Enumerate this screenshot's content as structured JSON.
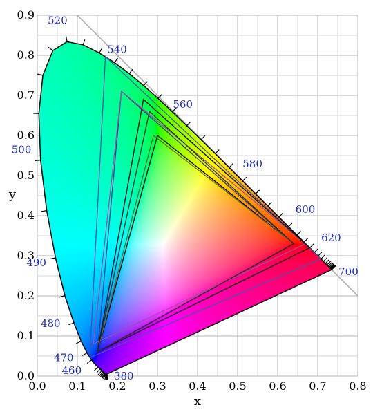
{
  "chart_data": {
    "type": "scatter",
    "title": "",
    "xlabel": "x",
    "ylabel": "y",
    "xlim": [
      0,
      0.8
    ],
    "ylim": [
      0,
      0.9
    ],
    "grid": true,
    "x_ticks": [
      "0.0",
      "0.1",
      "0.2",
      "0.3",
      "0.4",
      "0.5",
      "0.6",
      "0.7",
      "0.8"
    ],
    "y_ticks": [
      "0.0",
      "0.1",
      "0.2",
      "0.3",
      "0.4",
      "0.5",
      "0.6",
      "0.7",
      "0.8",
      "0.9"
    ],
    "spectral_locus": [
      [
        0.1741,
        0.005
      ],
      [
        0.1738,
        0.0049
      ],
      [
        0.1736,
        0.0049
      ],
      [
        0.1733,
        0.0048
      ],
      [
        0.173,
        0.0048
      ],
      [
        0.1726,
        0.0048
      ],
      [
        0.1721,
        0.0048
      ],
      [
        0.1714,
        0.0051
      ],
      [
        0.1703,
        0.0058
      ],
      [
        0.1689,
        0.0069
      ],
      [
        0.1669,
        0.0086
      ],
      [
        0.1644,
        0.0109
      ],
      [
        0.1611,
        0.0138
      ],
      [
        0.1566,
        0.0177
      ],
      [
        0.151,
        0.0227
      ],
      [
        0.144,
        0.0297
      ],
      [
        0.1355,
        0.0399
      ],
      [
        0.1241,
        0.0578
      ],
      [
        0.1096,
        0.0868
      ],
      [
        0.0913,
        0.1327
      ],
      [
        0.0687,
        0.2007
      ],
      [
        0.0454,
        0.295
      ],
      [
        0.0235,
        0.4127
      ],
      [
        0.0082,
        0.5384
      ],
      [
        0.0039,
        0.6548
      ],
      [
        0.0139,
        0.7502
      ],
      [
        0.0389,
        0.812
      ],
      [
        0.0743,
        0.8338
      ],
      [
        0.1142,
        0.8262
      ],
      [
        0.1547,
        0.8059
      ],
      [
        0.1929,
        0.7816
      ],
      [
        0.2296,
        0.7543
      ],
      [
        0.2658,
        0.7243
      ],
      [
        0.3016,
        0.6923
      ],
      [
        0.3373,
        0.6589
      ],
      [
        0.3731,
        0.6245
      ],
      [
        0.4087,
        0.5896
      ],
      [
        0.4441,
        0.5547
      ],
      [
        0.4788,
        0.5202
      ],
      [
        0.5125,
        0.4866
      ],
      [
        0.5448,
        0.4544
      ],
      [
        0.5752,
        0.4242
      ],
      [
        0.6029,
        0.3965
      ],
      [
        0.627,
        0.3725
      ],
      [
        0.6482,
        0.3514
      ],
      [
        0.6658,
        0.334
      ],
      [
        0.6801,
        0.3197
      ],
      [
        0.6915,
        0.3083
      ],
      [
        0.7006,
        0.2993
      ],
      [
        0.7079,
        0.292
      ],
      [
        0.714,
        0.2859
      ],
      [
        0.719,
        0.2809
      ],
      [
        0.723,
        0.277
      ],
      [
        0.726,
        0.274
      ],
      [
        0.7283,
        0.2717
      ],
      [
        0.73,
        0.27
      ],
      [
        0.7311,
        0.2689
      ],
      [
        0.732,
        0.268
      ],
      [
        0.7327,
        0.2673
      ],
      [
        0.7334,
        0.2666
      ],
      [
        0.734,
        0.266
      ],
      [
        0.7344,
        0.2656
      ],
      [
        0.7346,
        0.2654
      ],
      [
        0.7347,
        0.2653
      ],
      [
        0.7347,
        0.2653
      ]
    ],
    "wavelength_labels": [
      {
        "text": "380",
        "x": 0.1741,
        "y": 0.005,
        "dx": 10,
        "dy": 8
      },
      {
        "text": "460",
        "x": 0.144,
        "y": 0.0297,
        "dx": -48,
        "dy": 14
      },
      {
        "text": "470",
        "x": 0.1241,
        "y": 0.0578,
        "dx": -48,
        "dy": 12
      },
      {
        "text": "480",
        "x": 0.0913,
        "y": 0.1327,
        "dx": -48,
        "dy": 6
      },
      {
        "text": "490",
        "x": 0.0454,
        "y": 0.295,
        "dx": -42,
        "dy": 12
      },
      {
        "text": "500",
        "x": 0.0082,
        "y": 0.5384,
        "dx": -42,
        "dy": -10
      },
      {
        "text": "520",
        "x": 0.0743,
        "y": 0.8338,
        "dx": -28,
        "dy": -26
      },
      {
        "text": "540",
        "x": 0.2296,
        "y": 0.7543,
        "dx": -32,
        "dy": -30
      },
      {
        "text": "560",
        "x": 0.3731,
        "y": 0.6245,
        "dx": -20,
        "dy": -26
      },
      {
        "text": "580",
        "x": 0.5125,
        "y": 0.4866,
        "dx": 0,
        "dy": -20
      },
      {
        "text": "600",
        "x": 0.627,
        "y": 0.3725,
        "dx": 10,
        "dy": -20
      },
      {
        "text": "620",
        "x": 0.6915,
        "y": 0.3083,
        "dx": 10,
        "dy": -16
      },
      {
        "text": "700",
        "x": 0.7347,
        "y": 0.2653,
        "dx": 10,
        "dy": 8
      }
    ],
    "gamut_triangles": [
      {
        "points": [
          [
            0.64,
            0.33
          ],
          [
            0.3,
            0.6
          ],
          [
            0.15,
            0.06
          ]
        ],
        "color": "#000000"
      },
      {
        "points": [
          [
            0.64,
            0.33
          ],
          [
            0.21,
            0.71
          ],
          [
            0.15,
            0.06
          ]
        ],
        "color": "#2e3c8f"
      },
      {
        "points": [
          [
            0.68,
            0.32
          ],
          [
            0.265,
            0.69
          ],
          [
            0.15,
            0.06
          ]
        ],
        "color": "#3a58c8"
      },
      {
        "points": [
          [
            0.708,
            0.292
          ],
          [
            0.17,
            0.797
          ],
          [
            0.131,
            0.046
          ]
        ],
        "color": "#4d52a8"
      },
      {
        "points": [
          [
            0.67,
            0.33
          ],
          [
            0.21,
            0.71
          ],
          [
            0.14,
            0.08
          ]
        ],
        "color": "#9a4fa8"
      },
      {
        "points": [
          [
            0.64,
            0.33
          ],
          [
            0.29,
            0.6
          ],
          [
            0.15,
            0.06
          ]
        ],
        "color": "#6a6a2a"
      },
      {
        "points": [
          [
            0.68,
            0.32
          ],
          [
            0.265,
            0.69
          ],
          [
            0.15,
            0.06
          ]
        ],
        "color": "#111111"
      },
      {
        "points": [
          [
            0.64,
            0.33
          ],
          [
            0.28,
            0.66
          ],
          [
            0.15,
            0.06
          ]
        ],
        "color": "#2a2a2a"
      }
    ],
    "reference_line": [
      [
        0.1,
        0.9
      ],
      [
        0.8,
        0.2
      ]
    ]
  }
}
